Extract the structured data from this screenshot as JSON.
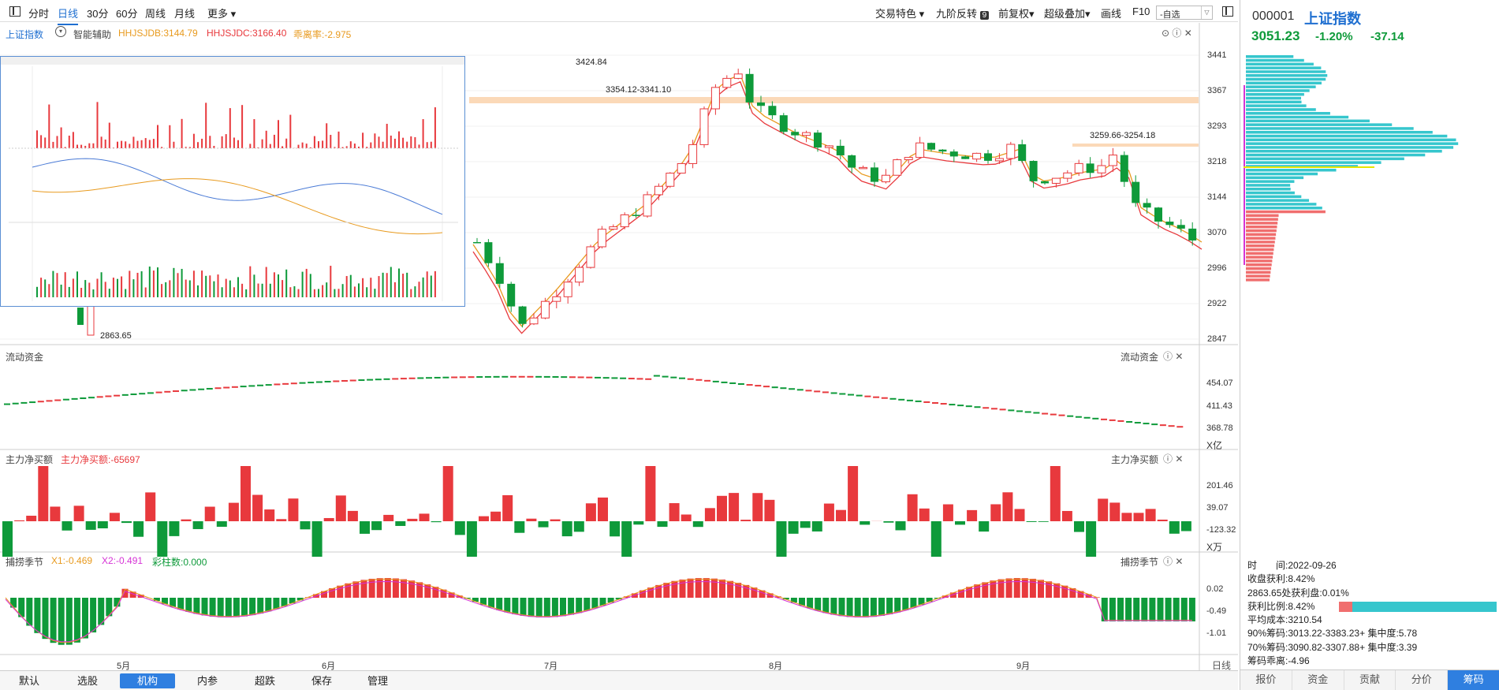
{
  "toolbar": {
    "periods": [
      "分时",
      "日线",
      "30分",
      "60分",
      "周线",
      "月线",
      "更多"
    ],
    "active_period": "日线",
    "right_items": [
      "交易特色",
      "九阶反转",
      "前复权",
      "超级叠加",
      "画线",
      "F10"
    ],
    "nine_badge": "9",
    "search_placeholder": "-自选"
  },
  "main": {
    "index_name": "上证指数",
    "assist_label": "智能辅助",
    "ind1": "HHJSJDB:3144.79",
    "ind2": "HHJSJDC:3166.40",
    "ind3": "乖离率:-2.975",
    "price_axis": [
      "3441",
      "3367",
      "3293",
      "3218",
      "3144",
      "3070",
      "2996",
      "2922",
      "2847"
    ],
    "annotations": {
      "high": "3424.84",
      "band1": "3354.12-3341.10",
      "band2": "3259.66-3254.18",
      "low": "2863.65"
    }
  },
  "liquidity": {
    "title": "流动资金",
    "axis": [
      "454.07",
      "411.43",
      "368.78"
    ],
    "unit": "X亿"
  },
  "mainflow": {
    "title": "主力净买额",
    "value_label": "主力净买额:-65697",
    "axis": [
      "201.46",
      "39.07",
      "-123.32"
    ],
    "unit": "X万"
  },
  "season": {
    "title": "捕捞季节",
    "x1": "X1:-0.469",
    "x2": "X2:-0.491",
    "bars": "彩柱数:0.000",
    "axis": [
      "0.02",
      "-0.49",
      "-1.01"
    ]
  },
  "x_axis": {
    "months": [
      "5月",
      "6月",
      "7月",
      "8月",
      "9月"
    ],
    "period_label": "日线"
  },
  "bottom_tabs": [
    "默认",
    "选股",
    "机构",
    "内参",
    "超跌",
    "保存",
    "管理"
  ],
  "bottom_active": "机构",
  "side": {
    "code": "000001",
    "name": "上证指数",
    "price": "3051.23",
    "pct": "-1.20%",
    "chg": "-37.14",
    "info": [
      "时　　间:2022-09-26",
      "收盘获利:8.42%",
      "2863.65处获利盘:0.01%",
      "获利比例:8.42%",
      "平均成本:3210.54",
      "90%筹码:3013.22-3383.23+ 集中度:5.78",
      "70%筹码:3090.82-3307.88+ 集中度:3.39",
      "筹码乖离:-4.96"
    ],
    "tabs": [
      "报价",
      "资金",
      "贡献",
      "分价",
      "筹码"
    ],
    "active_tab": "筹码",
    "colors": {
      "up": "#e8393d",
      "down": "#0e9a3a",
      "chip_up": "#36c6cd",
      "chip_down": "#f06e6e"
    }
  },
  "chart_data": {
    "type": "candlestick",
    "title": "上证指数",
    "period": "日线",
    "x_months": [
      "5月",
      "6月",
      "7月",
      "8月",
      "9月"
    ],
    "ylim": [
      2847,
      3441
    ],
    "labeled_points": {
      "high": 3424.84,
      "low": 2863.65,
      "resistance1": [
        3354.12,
        3341.1
      ],
      "resistance2": [
        3259.66,
        3254.18
      ]
    },
    "last_close": 3051.23,
    "hhjsjdb": 3144.79,
    "hhjsjdc": 3166.4,
    "mainflow_last": -65697,
    "season": {
      "x1": -0.469,
      "x2": -0.491
    }
  }
}
